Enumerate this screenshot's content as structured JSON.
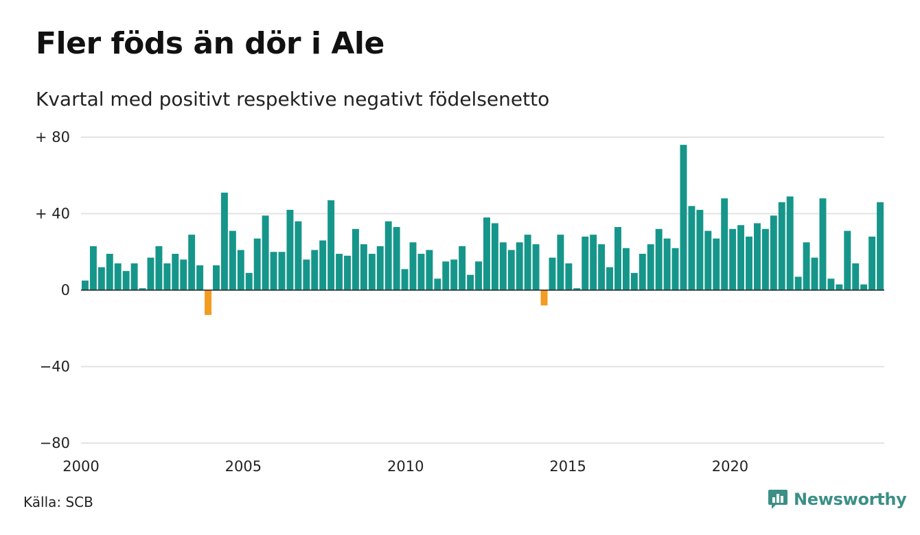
{
  "chart_data": {
    "type": "bar",
    "title": "Fler föds än dör i Ale",
    "subtitle": "Kvartal med positivt respektive negativt födelsenetto",
    "x_start": 2000,
    "x_end": 2024.75,
    "x_ticks": [
      {
        "value": 2000,
        "label": "2000"
      },
      {
        "value": 2005,
        "label": "2005"
      },
      {
        "value": 2010,
        "label": "2010"
      },
      {
        "value": 2015,
        "label": "2015"
      },
      {
        "value": 2020,
        "label": "2020"
      }
    ],
    "y_ticks": [
      {
        "value": 80,
        "label": "+ 80"
      },
      {
        "value": 40,
        "label": "+ 40"
      },
      {
        "value": 0,
        "label": "0"
      },
      {
        "value": -40,
        "label": "−40"
      },
      {
        "value": -80,
        "label": "−80"
      }
    ],
    "ylim": [
      -80,
      80
    ],
    "grid": true,
    "colors": {
      "positive": "#16968a",
      "negative": "#f39c1f",
      "grid": "#e3e3e3",
      "axis": "#222222"
    },
    "values": [
      5,
      23,
      12,
      19,
      14,
      10,
      14,
      1,
      17,
      23,
      14,
      19,
      16,
      29,
      13,
      -13,
      13,
      51,
      31,
      21,
      9,
      27,
      39,
      20,
      20,
      42,
      36,
      16,
      21,
      26,
      47,
      19,
      18,
      32,
      24,
      19,
      23,
      36,
      33,
      11,
      25,
      19,
      21,
      6,
      15,
      16,
      23,
      8,
      15,
      38,
      35,
      25,
      21,
      25,
      29,
      24,
      -8,
      17,
      29,
      14,
      1,
      28,
      29,
      24,
      12,
      33,
      22,
      9,
      19,
      24,
      32,
      27,
      22,
      76,
      44,
      42,
      31,
      27,
      48,
      32,
      34,
      28,
      35,
      32,
      39,
      46,
      49,
      7,
      25,
      17,
      48,
      6,
      3,
      31,
      14,
      3,
      28,
      46
    ]
  },
  "footer": {
    "source": "Källa: SCB",
    "brand": "Newsworthy",
    "brand_color": "#3b8f86",
    "brand_icon": "newsworthy-logo-icon"
  }
}
